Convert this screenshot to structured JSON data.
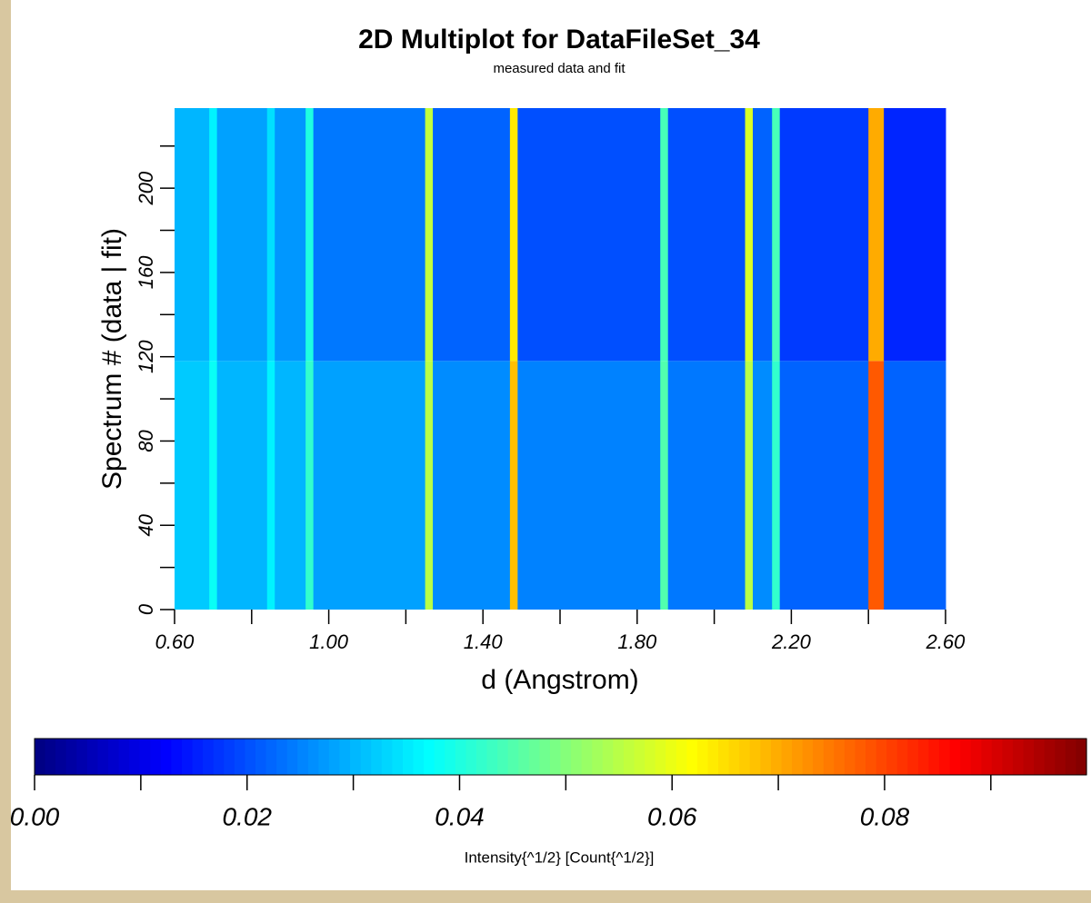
{
  "chart_data": {
    "type": "heatmap",
    "title": "2D Multiplot for DataFileSet_34",
    "subtitle": "measured data and fit",
    "x_label": "d (Angstrom)",
    "y_label": "Spectrum # (data | fit)",
    "colorbar_label": "Intensity{^1/2} [Count{^1/2}]",
    "colormap": "jet",
    "xbins": [
      0.6,
      0.69,
      0.71,
      0.84,
      0.86,
      0.94,
      0.96,
      1.25,
      1.27,
      1.47,
      1.49,
      1.86,
      1.88,
      2.08,
      2.1,
      2.15,
      2.17,
      2.4,
      2.44,
      2.6
    ],
    "ybins": [
      0,
      118,
      238
    ],
    "values": [
      [
        0.032,
        0.038,
        0.03,
        0.036,
        0.03,
        0.042,
        0.028,
        0.055,
        0.026,
        0.068,
        0.025,
        0.045,
        0.024,
        0.055,
        0.026,
        0.042,
        0.022,
        0.078,
        0.022
      ],
      [
        0.03,
        0.036,
        0.028,
        0.034,
        0.027,
        0.04,
        0.024,
        0.056,
        0.022,
        0.064,
        0.02,
        0.044,
        0.02,
        0.058,
        0.022,
        0.044,
        0.018,
        0.07,
        0.016
      ]
    ],
    "xlim": [
      0.6,
      2.6
    ],
    "xticks": [
      {
        "value": 0.6,
        "label": "0.60"
      },
      {
        "value": 1.0,
        "label": "1.00"
      },
      {
        "value": 1.4,
        "label": "1.40"
      },
      {
        "value": 1.8,
        "label": "1.80"
      },
      {
        "value": 2.2,
        "label": "2.20"
      },
      {
        "value": 2.6,
        "label": "2.60"
      }
    ],
    "xminor_ticks": [
      0.8,
      1.2,
      1.6,
      2.0,
      2.4
    ],
    "ylim": [
      0,
      238
    ],
    "yticks": [
      0,
      40,
      80,
      120,
      160,
      200
    ],
    "yminor_ticks": [
      20,
      60,
      100,
      140,
      180,
      220
    ],
    "clim": [
      0,
      0.099
    ],
    "cticks": [
      {
        "value": 0,
        "label": "0.00"
      },
      {
        "value": 0.02,
        "label": "0.02"
      },
      {
        "value": 0.04,
        "label": "0.04"
      },
      {
        "value": 0.06,
        "label": "0.06"
      },
      {
        "value": 0.08,
        "label": "0.08"
      }
    ],
    "cminor_ticks": [
      0.01,
      0.03,
      0.05,
      0.07,
      0.09
    ]
  }
}
